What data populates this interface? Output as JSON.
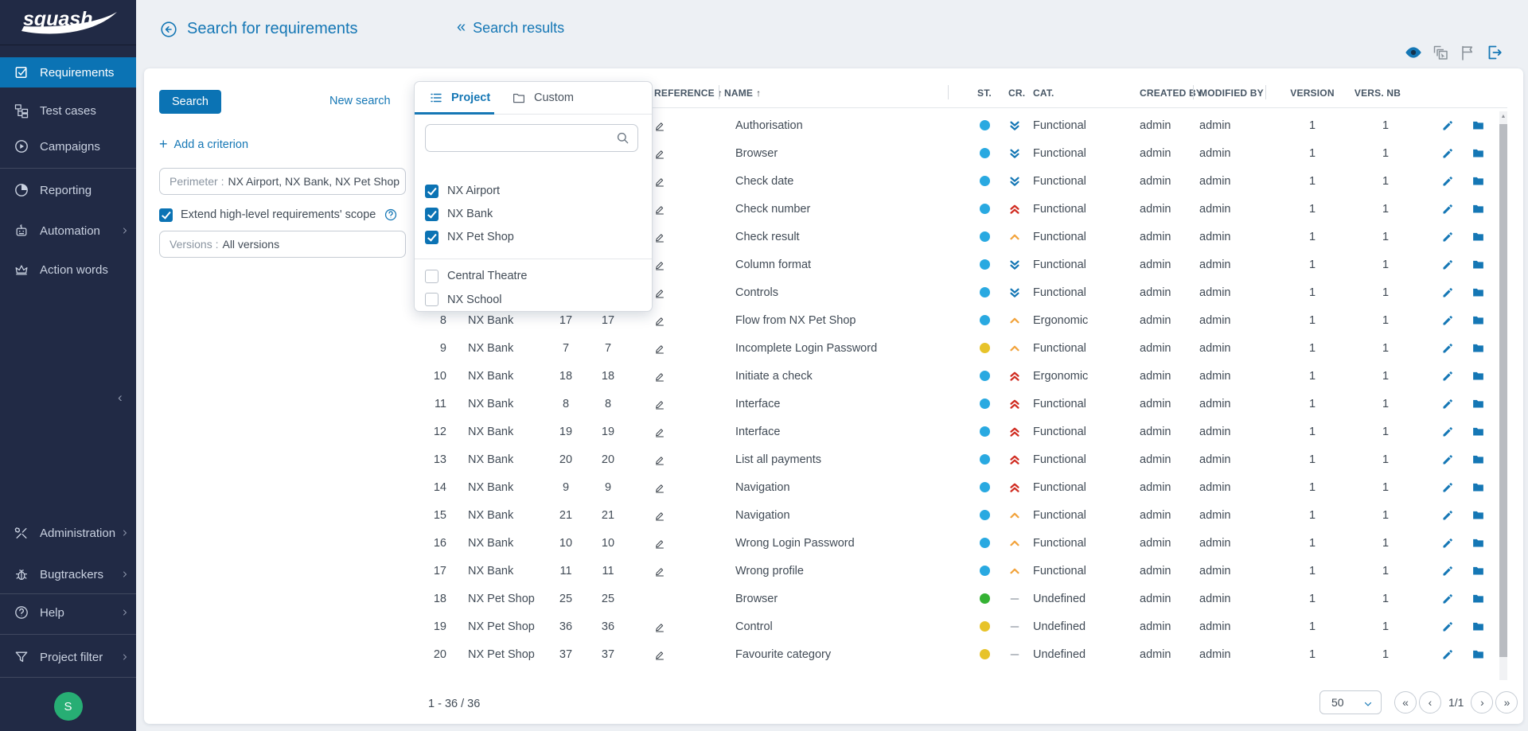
{
  "app": {
    "logo": "squash"
  },
  "colors": {
    "accent": "#1577b5",
    "status": {
      "blue": "#29a9e1",
      "yellow": "#e7c32a",
      "green": "#35b234"
    },
    "criticality": {
      "minor": "#1577b5",
      "major": "#f2a33c",
      "critical": "#d02b20",
      "undefined": "#b9bec4"
    }
  },
  "sidebar": {
    "main_items": [
      {
        "id": "requirements",
        "label": "Requirements",
        "icon": "requirements-icon",
        "active": true,
        "chevron": false
      },
      {
        "id": "test-cases",
        "label": "Test cases",
        "icon": "test-cases-icon",
        "active": false,
        "chevron": false
      },
      {
        "id": "campaigns",
        "label": "Campaigns",
        "icon": "campaigns-icon",
        "active": false,
        "chevron": false
      },
      {
        "id": "reporting",
        "label": "Reporting",
        "icon": "reporting-icon",
        "active": false,
        "chevron": false
      },
      {
        "id": "automation",
        "label": "Automation",
        "icon": "automation-icon",
        "active": false,
        "chevron": true
      },
      {
        "id": "action-words",
        "label": "Action words",
        "icon": "action-words-icon",
        "active": false,
        "chevron": false
      }
    ],
    "secondary_items": [
      {
        "id": "administration",
        "label": "Administration",
        "icon": "administration-icon",
        "chevron": true
      },
      {
        "id": "bugtrackers",
        "label": "Bugtrackers",
        "icon": "bugtrackers-icon",
        "chevron": true
      },
      {
        "id": "help",
        "label": "Help",
        "icon": "help-icon",
        "chevron": true
      },
      {
        "id": "project-filter",
        "label": "Project filter",
        "icon": "project-filter-icon",
        "chevron": true
      }
    ],
    "avatar_initial": "S"
  },
  "header": {
    "title": "Search for requirements",
    "results_chevron": "«",
    "results_label": "Search results"
  },
  "toolbar_icons": [
    {
      "name": "eye-icon"
    },
    {
      "name": "select-results-icon"
    },
    {
      "name": "flag-icon"
    },
    {
      "name": "export-icon"
    }
  ],
  "search_panel": {
    "search_button": "Search",
    "new_search": "New search",
    "add_plus": "+",
    "add_criterion": "Add a criterion",
    "perimeter_label": "Perimeter :",
    "perimeter_value": "NX Airport, NX Bank, NX Pet Shop",
    "extend_label": "Extend high-level requirements' scope",
    "extend_checked": true,
    "versions_label": "Versions :",
    "versions_value": "All versions"
  },
  "project_popup": {
    "tabs": [
      {
        "label": "Project",
        "icon": "list-icon",
        "active": true
      },
      {
        "label": "Custom",
        "icon": "folder-outline-icon",
        "active": false
      }
    ],
    "search_value": "",
    "selected_projects": [
      "NX Airport",
      "NX Bank",
      "NX Pet Shop"
    ],
    "other_projects": [
      "Central Theatre",
      "NX School"
    ]
  },
  "table": {
    "headers": {
      "reference": "REFERENCE",
      "name": "NAME",
      "status": "ST.",
      "criticality": "CR.",
      "category": "CAT.",
      "created_by": "CREATED BY",
      "modified_by": "MODIFIED BY",
      "version": "VERSION",
      "version_count": "VERS. NB"
    },
    "sort_arrow": "↑",
    "rows": [
      {
        "num": "",
        "project": "",
        "id": "",
        "ref": "",
        "editable": true,
        "name": "Authorisation",
        "status": "blue",
        "criticality": "minor",
        "category": "Functional",
        "created_by": "admin",
        "modified_by": "admin",
        "version": "1",
        "vers_nb": "1"
      },
      {
        "num": "",
        "project": "",
        "id": "",
        "ref": "",
        "editable": true,
        "name": "Browser",
        "status": "blue",
        "criticality": "minor",
        "category": "Functional",
        "created_by": "admin",
        "modified_by": "admin",
        "version": "1",
        "vers_nb": "1"
      },
      {
        "num": "",
        "project": "",
        "id": "",
        "ref": "",
        "editable": true,
        "name": "Check date",
        "status": "blue",
        "criticality": "minor",
        "category": "Functional",
        "created_by": "admin",
        "modified_by": "admin",
        "version": "1",
        "vers_nb": "1"
      },
      {
        "num": "",
        "project": "",
        "id": "",
        "ref": "",
        "editable": true,
        "name": "Check number",
        "status": "blue",
        "criticality": "critical",
        "category": "Functional",
        "created_by": "admin",
        "modified_by": "admin",
        "version": "1",
        "vers_nb": "1"
      },
      {
        "num": "",
        "project": "",
        "id": "",
        "ref": "",
        "editable": true,
        "name": "Check result",
        "status": "blue",
        "criticality": "major",
        "category": "Functional",
        "created_by": "admin",
        "modified_by": "admin",
        "version": "1",
        "vers_nb": "1"
      },
      {
        "num": "",
        "project": "",
        "id": "",
        "ref": "",
        "editable": true,
        "name": "Column format",
        "status": "blue",
        "criticality": "minor",
        "category": "Functional",
        "created_by": "admin",
        "modified_by": "admin",
        "version": "1",
        "vers_nb": "1"
      },
      {
        "num": "",
        "project": "",
        "id": "",
        "ref": "",
        "editable": true,
        "name": "Controls",
        "status": "blue",
        "criticality": "minor",
        "category": "Functional",
        "created_by": "admin",
        "modified_by": "admin",
        "version": "1",
        "vers_nb": "1"
      },
      {
        "num": "8",
        "project": "NX Bank",
        "id": "17",
        "ref": "17",
        "editable": true,
        "name": "Flow from NX Pet Shop",
        "status": "blue",
        "criticality": "major",
        "category": "Ergonomic",
        "created_by": "admin",
        "modified_by": "admin",
        "version": "1",
        "vers_nb": "1"
      },
      {
        "num": "9",
        "project": "NX Bank",
        "id": "7",
        "ref": "7",
        "editable": true,
        "name": "Incomplete Login Password",
        "status": "yellow",
        "criticality": "major",
        "category": "Functional",
        "created_by": "admin",
        "modified_by": "admin",
        "version": "1",
        "vers_nb": "1"
      },
      {
        "num": "10",
        "project": "NX Bank",
        "id": "18",
        "ref": "18",
        "editable": true,
        "name": "Initiate a check",
        "status": "blue",
        "criticality": "critical",
        "category": "Ergonomic",
        "created_by": "admin",
        "modified_by": "admin",
        "version": "1",
        "vers_nb": "1"
      },
      {
        "num": "11",
        "project": "NX Bank",
        "id": "8",
        "ref": "8",
        "editable": true,
        "name": "Interface",
        "status": "blue",
        "criticality": "critical",
        "category": "Functional",
        "created_by": "admin",
        "modified_by": "admin",
        "version": "1",
        "vers_nb": "1"
      },
      {
        "num": "12",
        "project": "NX Bank",
        "id": "19",
        "ref": "19",
        "editable": true,
        "name": "Interface",
        "status": "blue",
        "criticality": "critical",
        "category": "Functional",
        "created_by": "admin",
        "modified_by": "admin",
        "version": "1",
        "vers_nb": "1"
      },
      {
        "num": "13",
        "project": "NX Bank",
        "id": "20",
        "ref": "20",
        "editable": true,
        "name": "List all payments",
        "status": "blue",
        "criticality": "critical",
        "category": "Functional",
        "created_by": "admin",
        "modified_by": "admin",
        "version": "1",
        "vers_nb": "1"
      },
      {
        "num": "14",
        "project": "NX Bank",
        "id": "9",
        "ref": "9",
        "editable": true,
        "name": "Navigation",
        "status": "blue",
        "criticality": "critical",
        "category": "Functional",
        "created_by": "admin",
        "modified_by": "admin",
        "version": "1",
        "vers_nb": "1"
      },
      {
        "num": "15",
        "project": "NX Bank",
        "id": "21",
        "ref": "21",
        "editable": true,
        "name": "Navigation",
        "status": "blue",
        "criticality": "major",
        "category": "Functional",
        "created_by": "admin",
        "modified_by": "admin",
        "version": "1",
        "vers_nb": "1"
      },
      {
        "num": "16",
        "project": "NX Bank",
        "id": "10",
        "ref": "10",
        "editable": true,
        "name": "Wrong Login Password",
        "status": "blue",
        "criticality": "major",
        "category": "Functional",
        "created_by": "admin",
        "modified_by": "admin",
        "version": "1",
        "vers_nb": "1"
      },
      {
        "num": "17",
        "project": "NX Bank",
        "id": "11",
        "ref": "11",
        "editable": true,
        "name": "Wrong profile",
        "status": "blue",
        "criticality": "major",
        "category": "Functional",
        "created_by": "admin",
        "modified_by": "admin",
        "version": "1",
        "vers_nb": "1"
      },
      {
        "num": "18",
        "project": "NX Pet Shop",
        "id": "25",
        "ref": "25",
        "editable": false,
        "name": "Browser",
        "status": "green",
        "criticality": "undefined",
        "category": "Undefined",
        "created_by": "admin",
        "modified_by": "admin",
        "version": "1",
        "vers_nb": "1"
      },
      {
        "num": "19",
        "project": "NX Pet Shop",
        "id": "36",
        "ref": "36",
        "editable": true,
        "name": "Control",
        "status": "yellow",
        "criticality": "undefined",
        "category": "Undefined",
        "created_by": "admin",
        "modified_by": "admin",
        "version": "1",
        "vers_nb": "1"
      },
      {
        "num": "20",
        "project": "NX Pet Shop",
        "id": "37",
        "ref": "37",
        "editable": true,
        "name": "Favourite category",
        "status": "yellow",
        "criticality": "undefined",
        "category": "Undefined",
        "created_by": "admin",
        "modified_by": "admin",
        "version": "1",
        "vers_nb": "1"
      }
    ]
  },
  "footer": {
    "range": "1 - 36 / 36",
    "page_size": "50",
    "page_indicator": "1/1",
    "pager_first": "«",
    "pager_prev": "‹",
    "pager_next": "›",
    "pager_last": "»"
  }
}
